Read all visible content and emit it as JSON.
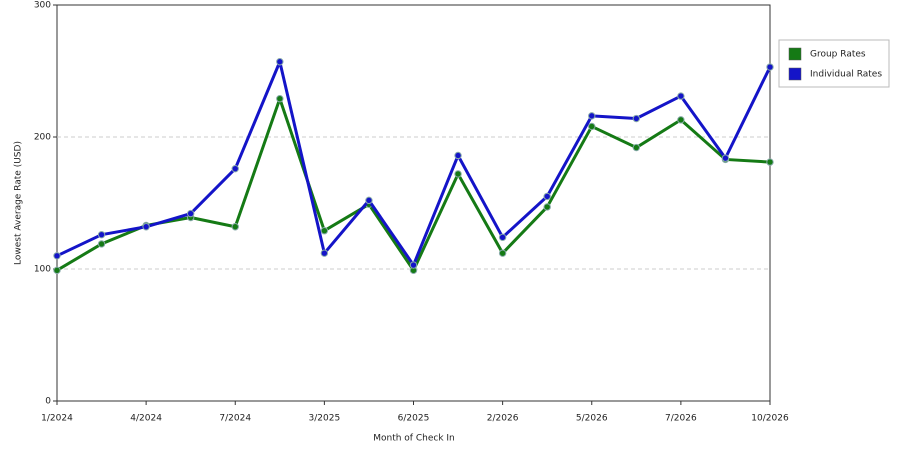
{
  "chart_data": {
    "type": "line",
    "x_label": "Month of Check In",
    "y_label": "Lowest Average Rate (USD)",
    "categories": [
      "1/2024",
      null,
      "4/2024",
      null,
      "7/2024",
      null,
      "3/2025",
      null,
      "6/2025",
      null,
      "2/2026",
      null,
      "5/2026",
      null,
      "7/2026",
      null,
      "10/2026"
    ],
    "series": [
      {
        "name": "Group Rates",
        "color": "#157a15",
        "values": [
          99,
          119,
          133,
          139,
          132,
          229,
          129,
          149,
          99,
          172,
          112,
          147,
          208,
          192,
          213,
          183,
          181
        ]
      },
      {
        "name": "Individual Rates",
        "color": "#1414c8",
        "values": [
          110,
          126,
          132,
          142,
          176,
          257,
          112,
          152,
          103,
          186,
          124,
          155,
          216,
          214,
          231,
          184,
          253
        ]
      }
    ],
    "ylim": [
      0,
      300
    ],
    "yticks": [
      0,
      100,
      200,
      300
    ],
    "grid": true,
    "legend": "right"
  }
}
